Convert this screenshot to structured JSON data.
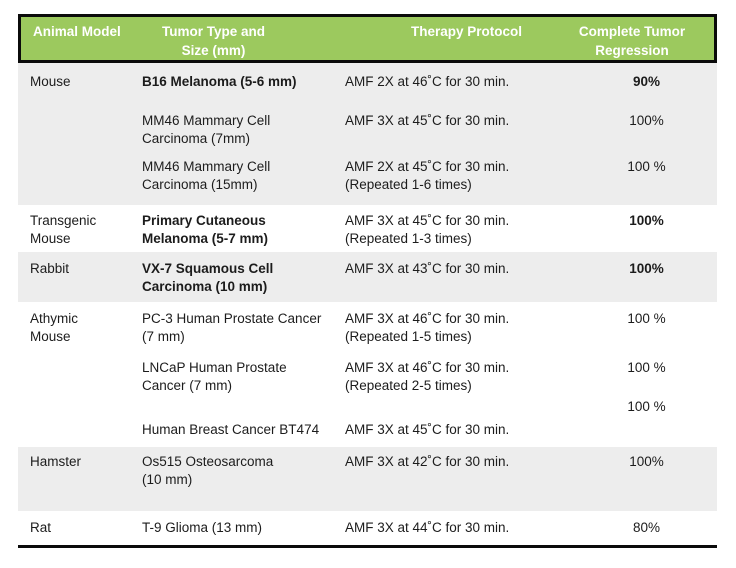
{
  "colors": {
    "header_green": "#9CC95E",
    "stripe_gray": "#EDEDED",
    "border_black": "#0B0B0B",
    "text": "#1C1C1C",
    "header_text": "#FFFFFF"
  },
  "table": {
    "header": [
      {
        "id": "animal-model",
        "lines": [
          "Animal Model"
        ]
      },
      {
        "id": "tumor-type-size",
        "lines": [
          "Tumor Type and",
          "Size (mm)"
        ]
      },
      {
        "id": "therapy-protocol",
        "lines": [
          "Therapy Protocol"
        ]
      },
      {
        "id": "complete-tumor-regression",
        "lines": [
          "Complete Tumor",
          "Regression"
        ]
      }
    ],
    "groups": [
      {
        "animal_lines": [
          "Mouse"
        ],
        "rows": [
          {
            "id": "b16",
            "tumor_lines": [
              "B16 Melanoma (5-6 mm)"
            ],
            "therapy_lines": [
              "AMF 2X at 46˚C for 30 min."
            ],
            "regression": "90%",
            "emphasis": true,
            "value_raised": false
          },
          {
            "id": "mm46-7",
            "tumor_lines": [
              "MM46 Mammary Cell",
              "Carcinoma (7mm)"
            ],
            "therapy_lines": [
              "AMF 3X at 45˚C for 30 min."
            ],
            "regression": "100%",
            "emphasis": false,
            "value_raised": false
          },
          {
            "id": "mm46-15",
            "tumor_lines": [
              "MM46 Mammary Cell",
              "Carcinoma (15mm)"
            ],
            "therapy_lines": [
              "AMF 2X at 45˚C for 30 min.",
              "(Repeated 1-6 times)"
            ],
            "regression": "100 %",
            "emphasis": false,
            "value_raised": false
          }
        ]
      },
      {
        "animal_lines": [
          "Transgenic",
          "Mouse"
        ],
        "rows": [
          {
            "id": "primary-cutaneous",
            "tumor_lines": [
              "Primary Cutaneous",
              "Melanoma (5-7 mm)"
            ],
            "therapy_lines": [
              "AMF 3X at 45˚C for 30 min.",
              "(Repeated 1-3 times)"
            ],
            "regression": "100%",
            "emphasis": true,
            "value_raised": false
          }
        ]
      },
      {
        "animal_lines": [
          "Rabbit"
        ],
        "rows": [
          {
            "id": "vx7",
            "tumor_lines": [
              "VX-7 Squamous Cell",
              "Carcinoma (10 mm)"
            ],
            "therapy_lines": [
              "AMF 3X at 43˚C for 30 min."
            ],
            "regression": "100%",
            "emphasis": true,
            "value_raised": false
          }
        ]
      },
      {
        "animal_lines": [
          "Athymic",
          "Mouse"
        ],
        "rows": [
          {
            "id": "pc3",
            "tumor_lines": [
              "PC-3 Human Prostate Cancer",
              "(7 mm)"
            ],
            "therapy_lines": [
              "AMF 3X at 46˚C for 30 min.",
              "(Repeated 1-5 times)"
            ],
            "regression": "100 %",
            "emphasis": false,
            "value_raised": false
          },
          {
            "id": "lncap",
            "tumor_lines": [
              "LNCaP Human Prostate",
              "Cancer (7 mm)"
            ],
            "therapy_lines": [
              "AMF 3X at 46˚C for 30 min.",
              "(Repeated 2-5 times)"
            ],
            "regression": "100 %",
            "emphasis": false,
            "value_raised": false
          },
          {
            "id": "bt474",
            "tumor_lines": [
              "Human Breast Cancer BT474"
            ],
            "therapy_lines": [
              "AMF 3X at 45˚C for 30 min."
            ],
            "regression": "100 %",
            "emphasis": false,
            "value_raised": true
          }
        ]
      },
      {
        "animal_lines": [
          "Hamster"
        ],
        "rows": [
          {
            "id": "os515",
            "tumor_lines": [
              "Os515 Osteosarcoma",
              "(10 mm)"
            ],
            "therapy_lines": [
              "AMF 3X at 42˚C for 30 min."
            ],
            "regression": "100%",
            "emphasis": false,
            "value_raised": false
          }
        ]
      },
      {
        "animal_lines": [
          "Rat"
        ],
        "rows": [
          {
            "id": "t9",
            "tumor_lines": [
              "T-9 Glioma (13 mm)"
            ],
            "therapy_lines": [
              "AMF 3X at 44˚C for 30 min."
            ],
            "regression": "80%",
            "emphasis": false,
            "value_raised": false
          }
        ]
      }
    ]
  }
}
